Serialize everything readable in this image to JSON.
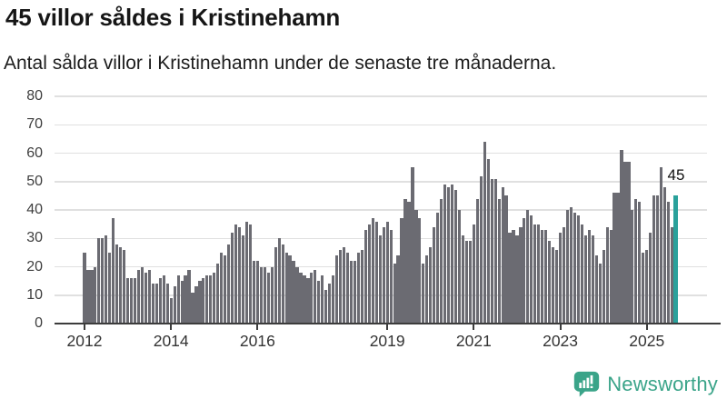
{
  "header": {
    "title": "45 villor såldes i Kristinehamn",
    "subtitle": "Antal sålda villor i Kristinehamn under de senaste tre månaderna."
  },
  "annotation": {
    "last_value_label": "45"
  },
  "logo": {
    "brand": "Newsworthy",
    "icon": "bar-chart-speech-bubble"
  },
  "colors": {
    "bar": "#6b6b72",
    "highlight_bar": "#2aa19b",
    "brand_teal": "#3aa489",
    "grid": "#e0e0e0",
    "axis": "#3c3c3c",
    "title_text": "#161616",
    "tick_text": "#3e3e3e"
  },
  "chart_data": {
    "type": "bar",
    "title": "45 villor såldes i Kristinehamn",
    "subtitle": "Antal sålda villor i Kristinehamn under de senaste tre månaderna.",
    "xlabel": "",
    "ylabel": "",
    "ylim": [
      0,
      80
    ],
    "y_ticks": [
      0,
      10,
      20,
      30,
      40,
      50,
      60,
      70,
      80
    ],
    "x_tick_labels": [
      "2012",
      "2014",
      "2016",
      "2019",
      "2021",
      "2023",
      "2025"
    ],
    "grid": "horizontal",
    "frequency": "monthly",
    "start": "2012-01",
    "end": "2025-09",
    "highlight_last_bar": true,
    "last_value": 45,
    "values": [
      25,
      19,
      19,
      20,
      30,
      30,
      31,
      25,
      37,
      28,
      27,
      26,
      16,
      16,
      16,
      19,
      20,
      18,
      19,
      14,
      14,
      16,
      17,
      14,
      9,
      13,
      17,
      15,
      17,
      19,
      11,
      13,
      15,
      16,
      17,
      17,
      18,
      21,
      25,
      24,
      28,
      32,
      35,
      34,
      31,
      36,
      35,
      22,
      22,
      20,
      20,
      18,
      20,
      27,
      30,
      28,
      25,
      24,
      22,
      20,
      18,
      17,
      16,
      18,
      19,
      15,
      17,
      12,
      14,
      17,
      24,
      26,
      27,
      25,
      22,
      22,
      25,
      26,
      33,
      35,
      37,
      36,
      31,
      34,
      36,
      33,
      21,
      24,
      37,
      44,
      43,
      55,
      40,
      37,
      21,
      24,
      27,
      34,
      39,
      44,
      49,
      48,
      49,
      47,
      40,
      31,
      29,
      29,
      35,
      44,
      52,
      64,
      58,
      51,
      51,
      44,
      48,
      45,
      32,
      33,
      31,
      34,
      37,
      40,
      38,
      35,
      35,
      33,
      33,
      29,
      27,
      26,
      32,
      34,
      40,
      41,
      39,
      38,
      35,
      31,
      33,
      31,
      24,
      21,
      26,
      34,
      33,
      46,
      46,
      61,
      57,
      57,
      40,
      44,
      43,
      25,
      26,
      32,
      45,
      45,
      55,
      48,
      43,
      34,
      45
    ]
  }
}
